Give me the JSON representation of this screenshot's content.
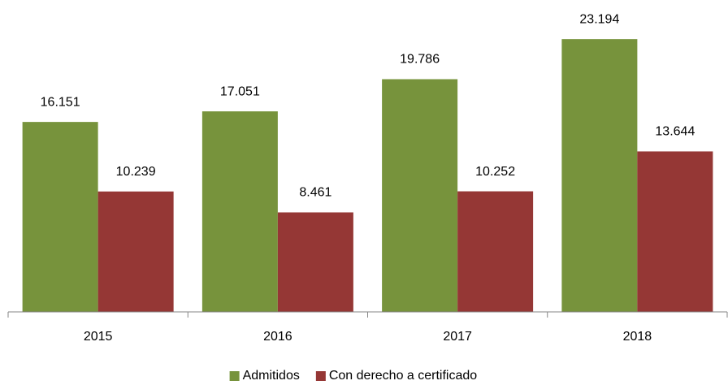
{
  "chart_data": {
    "type": "bar",
    "categories": [
      "2015",
      "2016",
      "2017",
      "2018"
    ],
    "series": [
      {
        "name": "Admitidos",
        "color": "#77933c",
        "values": [
          16151,
          17051,
          19786,
          23194
        ],
        "value_labels": [
          "16.151",
          "17.051",
          "19.786",
          "23.194"
        ]
      },
      {
        "name": "Con derecho a certificado",
        "color": "#953735",
        "values": [
          10239,
          8461,
          10252,
          13644
        ],
        "value_labels": [
          "10.239",
          "8.461",
          "10.252",
          "13.644"
        ]
      }
    ],
    "ylim": [
      0,
      25000
    ],
    "legend": "bottom"
  }
}
